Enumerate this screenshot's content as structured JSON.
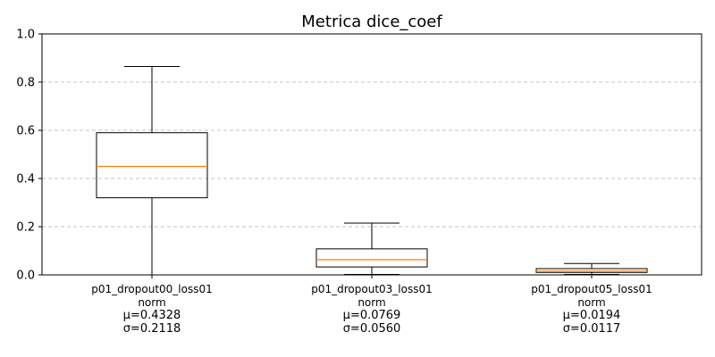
{
  "chart_data": {
    "type": "box",
    "title": "Metrica dice_coef",
    "xlabel": "",
    "ylabel": "",
    "ylim": [
      0,
      1
    ],
    "yticks": [
      "0.0",
      "0.2",
      "0.4",
      "0.6",
      "0.8",
      "1.0"
    ],
    "grid": "y-dashed",
    "colors": {
      "median": "#ff7f0e",
      "box": "#000000",
      "grid": "#b0b0b0"
    },
    "boxes": [
      {
        "label": "p01_dropout00_loss01\nnorm",
        "label_line1": "p01_dropout00_loss01",
        "label_line2": "norm",
        "mean_text": "μ=0.4328",
        "std_text": "σ=0.2118",
        "whisker_low": 0.0,
        "q1": 0.32,
        "median": 0.45,
        "q3": 0.59,
        "whisker_high": 0.865
      },
      {
        "label": "p01_dropout03_loss01\nnorm",
        "label_line1": "p01_dropout03_loss01",
        "label_line2": "norm",
        "mean_text": "μ=0.0769",
        "std_text": "σ=0.0560",
        "whisker_low": 0.002,
        "q1": 0.033,
        "median": 0.063,
        "q3": 0.108,
        "whisker_high": 0.215
      },
      {
        "label": "p01_dropout05_loss01\nnorm",
        "label_line1": "p01_dropout05_loss01",
        "label_line2": "norm",
        "mean_text": "μ=0.0194",
        "std_text": "σ=0.0117",
        "whisker_low": 0.002,
        "q1": 0.01,
        "median": 0.016,
        "q3": 0.026,
        "whisker_high": 0.047
      }
    ]
  }
}
